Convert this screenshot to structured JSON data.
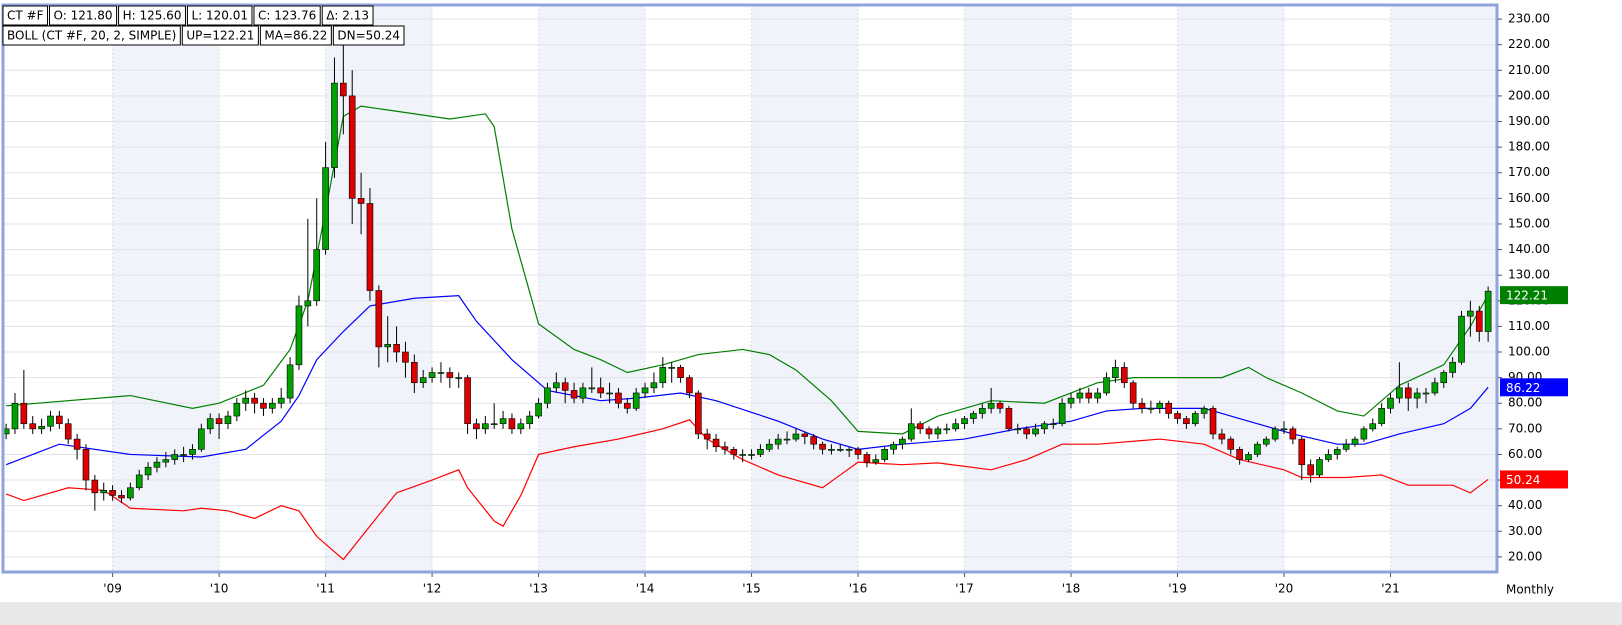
{
  "chart_data": {
    "type": "candlestick",
    "header_rows": [
      [
        "CT #F",
        "O: 121.80",
        "H: 125.60",
        "L: 120.01",
        "C: 123.76",
        "Δ: 2.13"
      ],
      [
        "BOLL (CT #F, 20, 2, SIMPLE)",
        "UP=122.21",
        "MA=86.22",
        "DN=50.24"
      ]
    ],
    "period": "Monthly",
    "up_color": "#00a000",
    "down_color": "#dd0000",
    "grid": true,
    "xlim": [
      -0.35,
      168
    ],
    "ylim": [
      14.1,
      235.5
    ],
    "xticks": [
      {
        "value": 12,
        "label": "'09"
      },
      {
        "value": 24,
        "label": "'10"
      },
      {
        "value": 36,
        "label": "'11"
      },
      {
        "value": 48,
        "label": "'12"
      },
      {
        "value": 60,
        "label": "'13"
      },
      {
        "value": 72,
        "label": "'14"
      },
      {
        "value": 84,
        "label": "'15"
      },
      {
        "value": 96,
        "label": "'16"
      },
      {
        "value": 108,
        "label": "'17"
      },
      {
        "value": 120,
        "label": "'18"
      },
      {
        "value": 132,
        "label": "'19"
      },
      {
        "value": 144,
        "label": "'20"
      },
      {
        "value": 156,
        "label": "'21"
      }
    ],
    "yticks": [
      {
        "value": 20,
        "label": "20.00"
      },
      {
        "value": 30,
        "label": "30.00"
      },
      {
        "value": 40,
        "label": "40.00"
      },
      {
        "value": 50,
        "label": "50.00"
      },
      {
        "value": 60,
        "label": "60.00"
      },
      {
        "value": 70,
        "label": "70.00"
      },
      {
        "value": 80,
        "label": "80.00"
      },
      {
        "value": 90,
        "label": "90.00"
      },
      {
        "value": 100,
        "label": "100.00"
      },
      {
        "value": 110,
        "label": "110.00"
      },
      {
        "value": 120,
        "label": "120.00"
      },
      {
        "value": 130,
        "label": "130.00"
      },
      {
        "value": 140,
        "label": "140.00"
      },
      {
        "value": 150,
        "label": "150.00"
      },
      {
        "value": 160,
        "label": "160.00"
      },
      {
        "value": 170,
        "label": "170.00"
      },
      {
        "value": 180,
        "label": "180.00"
      },
      {
        "value": 190,
        "label": "190.00"
      },
      {
        "value": 200,
        "label": "200.00"
      },
      {
        "value": 210,
        "label": "210.00"
      },
      {
        "value": 220,
        "label": "220.00"
      },
      {
        "value": 230,
        "label": "230.00"
      }
    ],
    "candles": [
      [
        68,
        72,
        66,
        70
      ],
      [
        70,
        84,
        68,
        80
      ],
      [
        80,
        93,
        70,
        72
      ],
      [
        72,
        75,
        68,
        70
      ],
      [
        70,
        74,
        68,
        71
      ],
      [
        71,
        77,
        69,
        75
      ],
      [
        75,
        77,
        70,
        72
      ],
      [
        72,
        74,
        64,
        66
      ],
      [
        66,
        68,
        58,
        62
      ],
      [
        62,
        64,
        46,
        50
      ],
      [
        50,
        52,
        38,
        45
      ],
      [
        45,
        49,
        42,
        46
      ],
      [
        46,
        48,
        42,
        44
      ],
      [
        44,
        46,
        41,
        43
      ],
      [
        43,
        49,
        42,
        47
      ],
      [
        47,
        54,
        46,
        52
      ],
      [
        52,
        57,
        50,
        55
      ],
      [
        55,
        59,
        53,
        57
      ],
      [
        57,
        61,
        55,
        58
      ],
      [
        58,
        62,
        56,
        60
      ],
      [
        60,
        63,
        57,
        60
      ],
      [
        60,
        64,
        58,
        62
      ],
      [
        62,
        72,
        61,
        70
      ],
      [
        70,
        76,
        68,
        74
      ],
      [
        74,
        76,
        66,
        72
      ],
      [
        72,
        77,
        70,
        75
      ],
      [
        75,
        82,
        73,
        80
      ],
      [
        80,
        85,
        77,
        82
      ],
      [
        82,
        84,
        76,
        80
      ],
      [
        80,
        82,
        75,
        78
      ],
      [
        78,
        82,
        76,
        80
      ],
      [
        80,
        86,
        78,
        82
      ],
      [
        82,
        98,
        80,
        95
      ],
      [
        95,
        122,
        93,
        118
      ],
      [
        118,
        152,
        110,
        120
      ],
      [
        120,
        160,
        118,
        140
      ],
      [
        140,
        182,
        138,
        172
      ],
      [
        172,
        215,
        168,
        205
      ],
      [
        205,
        220,
        185,
        200
      ],
      [
        200,
        210,
        150,
        160
      ],
      [
        160,
        170,
        146,
        158
      ],
      [
        158,
        164,
        120,
        124
      ],
      [
        124,
        126,
        94,
        102
      ],
      [
        102,
        114,
        96,
        103
      ],
      [
        103,
        110,
        96,
        100
      ],
      [
        100,
        104,
        90,
        96
      ],
      [
        96,
        99,
        84,
        88
      ],
      [
        88,
        93,
        86,
        90
      ],
      [
        90,
        94,
        88,
        92
      ],
      [
        92,
        96,
        88,
        92
      ],
      [
        92,
        94,
        86,
        90
      ],
      [
        90,
        92,
        86,
        90
      ],
      [
        90,
        91,
        68,
        72
      ],
      [
        72,
        74,
        66,
        70
      ],
      [
        70,
        75,
        68,
        72
      ],
      [
        72,
        80,
        70,
        72
      ],
      [
        72,
        77,
        70,
        74
      ],
      [
        74,
        76,
        68,
        70
      ],
      [
        70,
        74,
        68,
        72
      ],
      [
        72,
        77,
        70,
        75
      ],
      [
        75,
        82,
        74,
        80
      ],
      [
        80,
        88,
        78,
        86
      ],
      [
        86,
        92,
        84,
        88
      ],
      [
        88,
        90,
        80,
        85
      ],
      [
        85,
        88,
        80,
        82
      ],
      [
        82,
        88,
        80,
        86
      ],
      [
        86,
        94,
        84,
        86
      ],
      [
        86,
        90,
        82,
        84
      ],
      [
        84,
        88,
        80,
        84
      ],
      [
        84,
        86,
        78,
        80
      ],
      [
        80,
        82,
        76,
        78
      ],
      [
        78,
        86,
        77,
        84
      ],
      [
        84,
        88,
        82,
        86
      ],
      [
        86,
        92,
        84,
        88
      ],
      [
        88,
        98,
        86,
        94
      ],
      [
        94,
        96,
        88,
        94
      ],
      [
        94,
        95,
        88,
        90
      ],
      [
        90,
        91,
        82,
        84
      ],
      [
        84,
        85,
        66,
        68
      ],
      [
        68,
        70,
        62,
        66
      ],
      [
        66,
        68,
        61,
        63
      ],
      [
        63,
        65,
        60,
        62
      ],
      [
        62,
        63,
        58,
        60
      ],
      [
        60,
        62,
        57,
        60
      ],
      [
        60,
        62,
        58,
        60
      ],
      [
        60,
        64,
        59,
        62
      ],
      [
        62,
        66,
        61,
        64
      ],
      [
        64,
        68,
        62,
        66
      ],
      [
        66,
        69,
        64,
        66
      ],
      [
        66,
        70,
        65,
        68
      ],
      [
        68,
        69,
        64,
        67
      ],
      [
        67,
        68,
        62,
        64
      ],
      [
        64,
        65,
        60,
        62
      ],
      [
        62,
        64,
        60,
        62
      ],
      [
        62,
        64,
        61,
        62
      ],
      [
        62,
        63,
        59,
        62
      ],
      [
        62,
        63,
        58,
        60
      ],
      [
        60,
        61,
        55,
        57
      ],
      [
        57,
        60,
        56,
        58
      ],
      [
        58,
        63,
        57,
        62
      ],
      [
        62,
        65,
        60,
        64
      ],
      [
        64,
        67,
        62,
        66
      ],
      [
        66,
        78,
        65,
        72
      ],
      [
        72,
        73,
        68,
        70
      ],
      [
        70,
        71,
        66,
        68
      ],
      [
        68,
        71,
        66,
        70
      ],
      [
        70,
        72,
        68,
        70
      ],
      [
        70,
        74,
        69,
        72
      ],
      [
        72,
        75,
        70,
        74
      ],
      [
        74,
        77,
        72,
        76
      ],
      [
        76,
        80,
        74,
        78
      ],
      [
        78,
        86,
        76,
        80
      ],
      [
        80,
        81,
        76,
        78
      ],
      [
        78,
        79,
        69,
        70
      ],
      [
        70,
        72,
        68,
        70
      ],
      [
        70,
        71,
        66,
        68
      ],
      [
        68,
        72,
        67,
        70
      ],
      [
        70,
        73,
        68,
        72
      ],
      [
        72,
        74,
        70,
        72
      ],
      [
        72,
        82,
        71,
        80
      ],
      [
        80,
        84,
        78,
        82
      ],
      [
        82,
        86,
        80,
        84
      ],
      [
        84,
        86,
        80,
        82
      ],
      [
        82,
        86,
        80,
        84
      ],
      [
        84,
        92,
        83,
        90
      ],
      [
        90,
        97,
        88,
        94
      ],
      [
        94,
        96,
        86,
        88
      ],
      [
        88,
        89,
        78,
        80
      ],
      [
        80,
        82,
        76,
        78
      ],
      [
        78,
        81,
        76,
        78
      ],
      [
        78,
        81,
        76,
        80
      ],
      [
        80,
        81,
        74,
        76
      ],
      [
        76,
        77,
        72,
        74
      ],
      [
        74,
        75,
        70,
        72
      ],
      [
        72,
        77,
        71,
        76
      ],
      [
        76,
        79,
        74,
        78
      ],
      [
        78,
        79,
        66,
        68
      ],
      [
        68,
        70,
        64,
        66
      ],
      [
        66,
        67,
        60,
        62
      ],
      [
        62,
        63,
        56,
        58
      ],
      [
        58,
        61,
        57,
        60
      ],
      [
        60,
        65,
        59,
        64
      ],
      [
        64,
        67,
        63,
        66
      ],
      [
        66,
        71,
        65,
        70
      ],
      [
        70,
        73,
        68,
        70
      ],
      [
        70,
        71,
        64,
        66
      ],
      [
        66,
        67,
        50,
        56
      ],
      [
        56,
        58,
        49,
        52
      ],
      [
        52,
        59,
        51,
        58
      ],
      [
        58,
        62,
        57,
        60
      ],
      [
        60,
        63,
        58,
        62
      ],
      [
        62,
        66,
        61,
        64
      ],
      [
        64,
        67,
        63,
        66
      ],
      [
        66,
        71,
        65,
        70
      ],
      [
        70,
        74,
        69,
        72
      ],
      [
        72,
        80,
        71,
        78
      ],
      [
        78,
        84,
        76,
        82
      ],
      [
        82,
        96,
        80,
        86
      ],
      [
        86,
        88,
        77,
        82
      ],
      [
        82,
        86,
        78,
        84
      ],
      [
        84,
        86,
        80,
        84
      ],
      [
        84,
        90,
        83,
        88
      ],
      [
        88,
        93,
        86,
        92
      ],
      [
        92,
        98,
        90,
        96
      ],
      [
        96,
        116,
        95,
        114
      ],
      [
        114,
        120,
        106,
        116
      ],
      [
        116,
        118,
        104,
        108
      ],
      [
        108,
        125.6,
        104,
        123.76
      ]
    ],
    "series": [
      {
        "name": "UP",
        "color": "#008000",
        "last_value": 122.21,
        "x": [
          0,
          14,
          21,
          24,
          29,
          32,
          34,
          36,
          38,
          40,
          44,
          50,
          54,
          55,
          57,
          60,
          64,
          67,
          70,
          74,
          78,
          83,
          86,
          89,
          93,
          96,
          101,
          105,
          111,
          117,
          123,
          127,
          137,
          140,
          142,
          146,
          150,
          153,
          157,
          162,
          165,
          167
        ],
        "values": [
          79,
          83,
          78,
          80,
          87,
          101,
          120,
          155,
          192,
          196,
          194,
          191,
          193,
          188,
          148,
          111,
          101,
          97,
          92,
          95,
          99,
          101,
          99,
          93,
          81,
          69,
          68,
          75,
          81,
          80,
          88,
          90,
          90,
          94,
          90,
          84,
          77,
          75,
          87,
          95,
          110,
          122.21
        ]
      },
      {
        "name": "MA",
        "color": "#0000ff",
        "last_value": 86.22,
        "x": [
          0,
          6,
          14,
          22,
          27,
          31,
          33,
          35,
          38,
          41,
          46,
          51,
          53,
          57,
          61,
          67,
          71,
          76,
          80,
          87,
          92,
          96,
          101,
          108,
          114,
          120,
          124,
          128,
          135,
          140,
          145,
          150,
          153,
          157,
          162,
          165,
          167
        ],
        "values": [
          56,
          64,
          60,
          59,
          62,
          73,
          83,
          97,
          108,
          118,
          121,
          122,
          112,
          97,
          85,
          81,
          82,
          84,
          81,
          73,
          66,
          62,
          64,
          66,
          70,
          73,
          77,
          78,
          78,
          73,
          68,
          64,
          64,
          68,
          72,
          78,
          86.22
        ]
      },
      {
        "name": "DN",
        "color": "#ff0000",
        "last_value": 50.24,
        "x": [
          0,
          2,
          7,
          11,
          14,
          20,
          22,
          25,
          28,
          31,
          33,
          35,
          38,
          41,
          44,
          48,
          51,
          52,
          55,
          56,
          58,
          60,
          64,
          69,
          74,
          77,
          79,
          83,
          87,
          92,
          94,
          96,
          101,
          105,
          111,
          115,
          119,
          123,
          130,
          135,
          139,
          144,
          146,
          151,
          155,
          158,
          163,
          165,
          167
        ],
        "values": [
          44.6,
          42,
          47,
          46,
          39,
          38,
          39,
          38,
          35,
          40,
          38,
          28,
          19,
          32,
          45,
          50,
          54,
          47,
          34,
          32,
          44,
          60,
          63,
          66,
          70,
          73.5,
          66,
          58,
          52,
          47,
          52,
          57,
          56,
          56.7,
          54,
          58,
          64,
          64,
          66,
          64,
          58,
          54,
          51,
          51,
          52,
          48,
          48,
          45,
          50.24
        ]
      }
    ]
  }
}
